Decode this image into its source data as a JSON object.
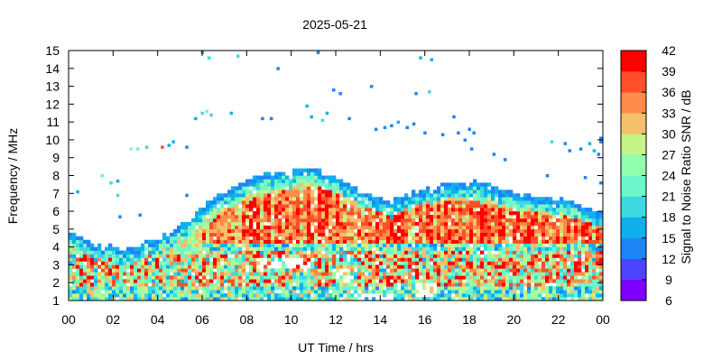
{
  "chart_data": {
    "type": "heatmap",
    "title": "2025-05-21",
    "xlabel": "UT Time / hrs",
    "ylabel": "Frequency / MHz",
    "xlim": [
      0,
      24
    ],
    "ylim": [
      1,
      15
    ],
    "x_ticks": [
      "00",
      "02",
      "04",
      "06",
      "08",
      "10",
      "12",
      "14",
      "16",
      "18",
      "20",
      "22",
      "00"
    ],
    "y_ticks": [
      "1",
      "2",
      "3",
      "4",
      "5",
      "6",
      "7",
      "8",
      "9",
      "10",
      "11",
      "12",
      "13",
      "14",
      "15"
    ],
    "colorbar": {
      "label": "Signal to Noise Ratio SNR / dB",
      "range": [
        6,
        42
      ],
      "ticks": [
        "6",
        "9",
        "12",
        "15",
        "18",
        "21",
        "24",
        "27",
        "30",
        "33",
        "36",
        "39",
        "42"
      ],
      "colors": [
        "#7f00ff",
        "#4f44fe",
        "#1e86f4",
        "#0fb0ec",
        "#3ed9e0",
        "#6cf6cc",
        "#90ffae",
        "#c3f588",
        "#f5c06a",
        "#ff8c4a",
        "#ff4f28",
        "#ff0000"
      ]
    },
    "upper_envelope": {
      "time_h": [
        0.0,
        1.0,
        1.8,
        2.6,
        3.5,
        4.5,
        5.5,
        6.5,
        7.5,
        8.5,
        9.5,
        10.5,
        11.0,
        11.6,
        12.5,
        13.5,
        14.5,
        15.5,
        16.5,
        17.5,
        18.5,
        19.5,
        20.5,
        21.5,
        22.5,
        23.5,
        24.0
      ],
      "freq_mhz": [
        5.1,
        4.2,
        4.1,
        3.9,
        4.3,
        4.7,
        5.6,
        6.8,
        7.5,
        8.0,
        8.1,
        8.3,
        8.4,
        8.1,
        7.6,
        6.9,
        6.6,
        7.0,
        7.5,
        7.6,
        7.7,
        7.2,
        6.9,
        6.7,
        6.6,
        6.0,
        5.8
      ]
    },
    "core_envelope": {
      "time_h": [
        6.0,
        7.0,
        8.0,
        9.0,
        10.0,
        11.0,
        12.0,
        13.0,
        14.0,
        15.0,
        16.0,
        17.0,
        18.0,
        19.0,
        20.0,
        21.0,
        22.0,
        23.0,
        24.0
      ],
      "freq_mhz": [
        4.9,
        6.1,
        6.6,
        7.0,
        7.2,
        7.5,
        7.0,
        6.6,
        6.2,
        6.4,
        6.6,
        6.7,
        6.6,
        6.4,
        6.1,
        5.9,
        5.8,
        5.5,
        5.1
      ]
    },
    "low_band_red_mhz": [
      1.8,
      3.8
    ],
    "data_gaps": [
      {
        "time_h": [
          8.5,
          11.0
        ],
        "freq_mhz": [
          2.9,
          3.4
        ]
      },
      {
        "time_h": [
          12.0,
          13.0
        ],
        "freq_mhz": [
          2.2,
          2.7
        ]
      },
      {
        "time_h": [
          12.8,
          14.6
        ],
        "freq_mhz": [
          1.0,
          1.3
        ]
      },
      {
        "time_h": [
          15.5,
          16.5
        ],
        "freq_mhz": [
          1.3,
          1.9
        ]
      }
    ],
    "sporadic_echoes": [
      {
        "t": 2.8,
        "f": 9.5,
        "snr": 24
      },
      {
        "t": 3.1,
        "f": 9.5,
        "snr": 21
      },
      {
        "t": 3.5,
        "f": 9.6,
        "snr": 20
      },
      {
        "t": 4.2,
        "f": 9.6,
        "snr": 36
      },
      {
        "t": 4.5,
        "f": 9.7,
        "snr": 16
      },
      {
        "t": 4.7,
        "f": 9.9,
        "snr": 15
      },
      {
        "t": 5.3,
        "f": 9.6,
        "snr": 14
      },
      {
        "t": 1.5,
        "f": 8.0,
        "snr": 21
      },
      {
        "t": 1.9,
        "f": 7.6,
        "snr": 18
      },
      {
        "t": 2.2,
        "f": 7.7,
        "snr": 16
      },
      {
        "t": 0.4,
        "f": 7.1,
        "snr": 15
      },
      {
        "t": 2.2,
        "f": 6.9,
        "snr": 20
      },
      {
        "t": 2.3,
        "f": 5.7,
        "snr": 14
      },
      {
        "t": 3.2,
        "f": 5.8,
        "snr": 14
      },
      {
        "t": 5.3,
        "f": 6.9,
        "snr": 14
      },
      {
        "t": 6.0,
        "f": 14.9,
        "snr": 15
      },
      {
        "t": 6.3,
        "f": 14.6,
        "snr": 18
      },
      {
        "t": 7.6,
        "f": 14.7,
        "snr": 20
      },
      {
        "t": 9.4,
        "f": 14.0,
        "snr": 14
      },
      {
        "t": 11.2,
        "f": 14.9,
        "snr": 14
      },
      {
        "t": 13.6,
        "f": 13.0,
        "snr": 13
      },
      {
        "t": 11.9,
        "f": 12.8,
        "snr": 14
      },
      {
        "t": 12.2,
        "f": 12.6,
        "snr": 14
      },
      {
        "t": 15.6,
        "f": 12.6,
        "snr": 14
      },
      {
        "t": 16.2,
        "f": 12.7,
        "snr": 20
      },
      {
        "t": 15.8,
        "f": 14.6,
        "snr": 15
      },
      {
        "t": 16.3,
        "f": 14.5,
        "snr": 16
      },
      {
        "t": 6.0,
        "f": 11.5,
        "snr": 18
      },
      {
        "t": 6.2,
        "f": 11.6,
        "snr": 21
      },
      {
        "t": 6.4,
        "f": 11.4,
        "snr": 18
      },
      {
        "t": 5.7,
        "f": 11.2,
        "snr": 16
      },
      {
        "t": 7.3,
        "f": 11.5,
        "snr": 15
      },
      {
        "t": 8.7,
        "f": 11.2,
        "snr": 14
      },
      {
        "t": 9.1,
        "f": 11.2,
        "snr": 14
      },
      {
        "t": 10.7,
        "f": 11.9,
        "snr": 15
      },
      {
        "t": 10.9,
        "f": 11.3,
        "snr": 16
      },
      {
        "t": 11.4,
        "f": 11.1,
        "snr": 20
      },
      {
        "t": 11.6,
        "f": 11.5,
        "snr": 15
      },
      {
        "t": 12.6,
        "f": 11.2,
        "snr": 13
      },
      {
        "t": 13.8,
        "f": 10.6,
        "snr": 14
      },
      {
        "t": 14.2,
        "f": 10.7,
        "snr": 14
      },
      {
        "t": 14.5,
        "f": 10.8,
        "snr": 14
      },
      {
        "t": 14.8,
        "f": 11.0,
        "snr": 16
      },
      {
        "t": 15.2,
        "f": 10.7,
        "snr": 14
      },
      {
        "t": 15.5,
        "f": 10.9,
        "snr": 14
      },
      {
        "t": 16.0,
        "f": 10.4,
        "snr": 14
      },
      {
        "t": 16.8,
        "f": 10.3,
        "snr": 14
      },
      {
        "t": 17.5,
        "f": 10.4,
        "snr": 14
      },
      {
        "t": 17.3,
        "f": 11.3,
        "snr": 14
      },
      {
        "t": 18.0,
        "f": 10.6,
        "snr": 14
      },
      {
        "t": 18.2,
        "f": 10.4,
        "snr": 14
      },
      {
        "t": 17.8,
        "f": 10.0,
        "snr": 14
      },
      {
        "t": 18.1,
        "f": 9.5,
        "snr": 14
      },
      {
        "t": 19.6,
        "f": 8.9,
        "snr": 14
      },
      {
        "t": 19.1,
        "f": 9.2,
        "snr": 14
      },
      {
        "t": 21.7,
        "f": 9.9,
        "snr": 20
      },
      {
        "t": 22.3,
        "f": 9.8,
        "snr": 14
      },
      {
        "t": 22.5,
        "f": 9.4,
        "snr": 14
      },
      {
        "t": 23.0,
        "f": 9.5,
        "snr": 14
      },
      {
        "t": 23.4,
        "f": 9.8,
        "snr": 16
      },
      {
        "t": 23.6,
        "f": 9.4,
        "snr": 15
      },
      {
        "t": 23.8,
        "f": 9.2,
        "snr": 14
      },
      {
        "t": 23.9,
        "f": 9.9,
        "snr": 14
      },
      {
        "t": 23.9,
        "f": 10.1,
        "snr": 14
      },
      {
        "t": 21.5,
        "f": 8.0,
        "snr": 14
      },
      {
        "t": 23.2,
        "f": 7.9,
        "snr": 14
      },
      {
        "t": 23.9,
        "f": 7.6,
        "snr": 14
      }
    ]
  }
}
